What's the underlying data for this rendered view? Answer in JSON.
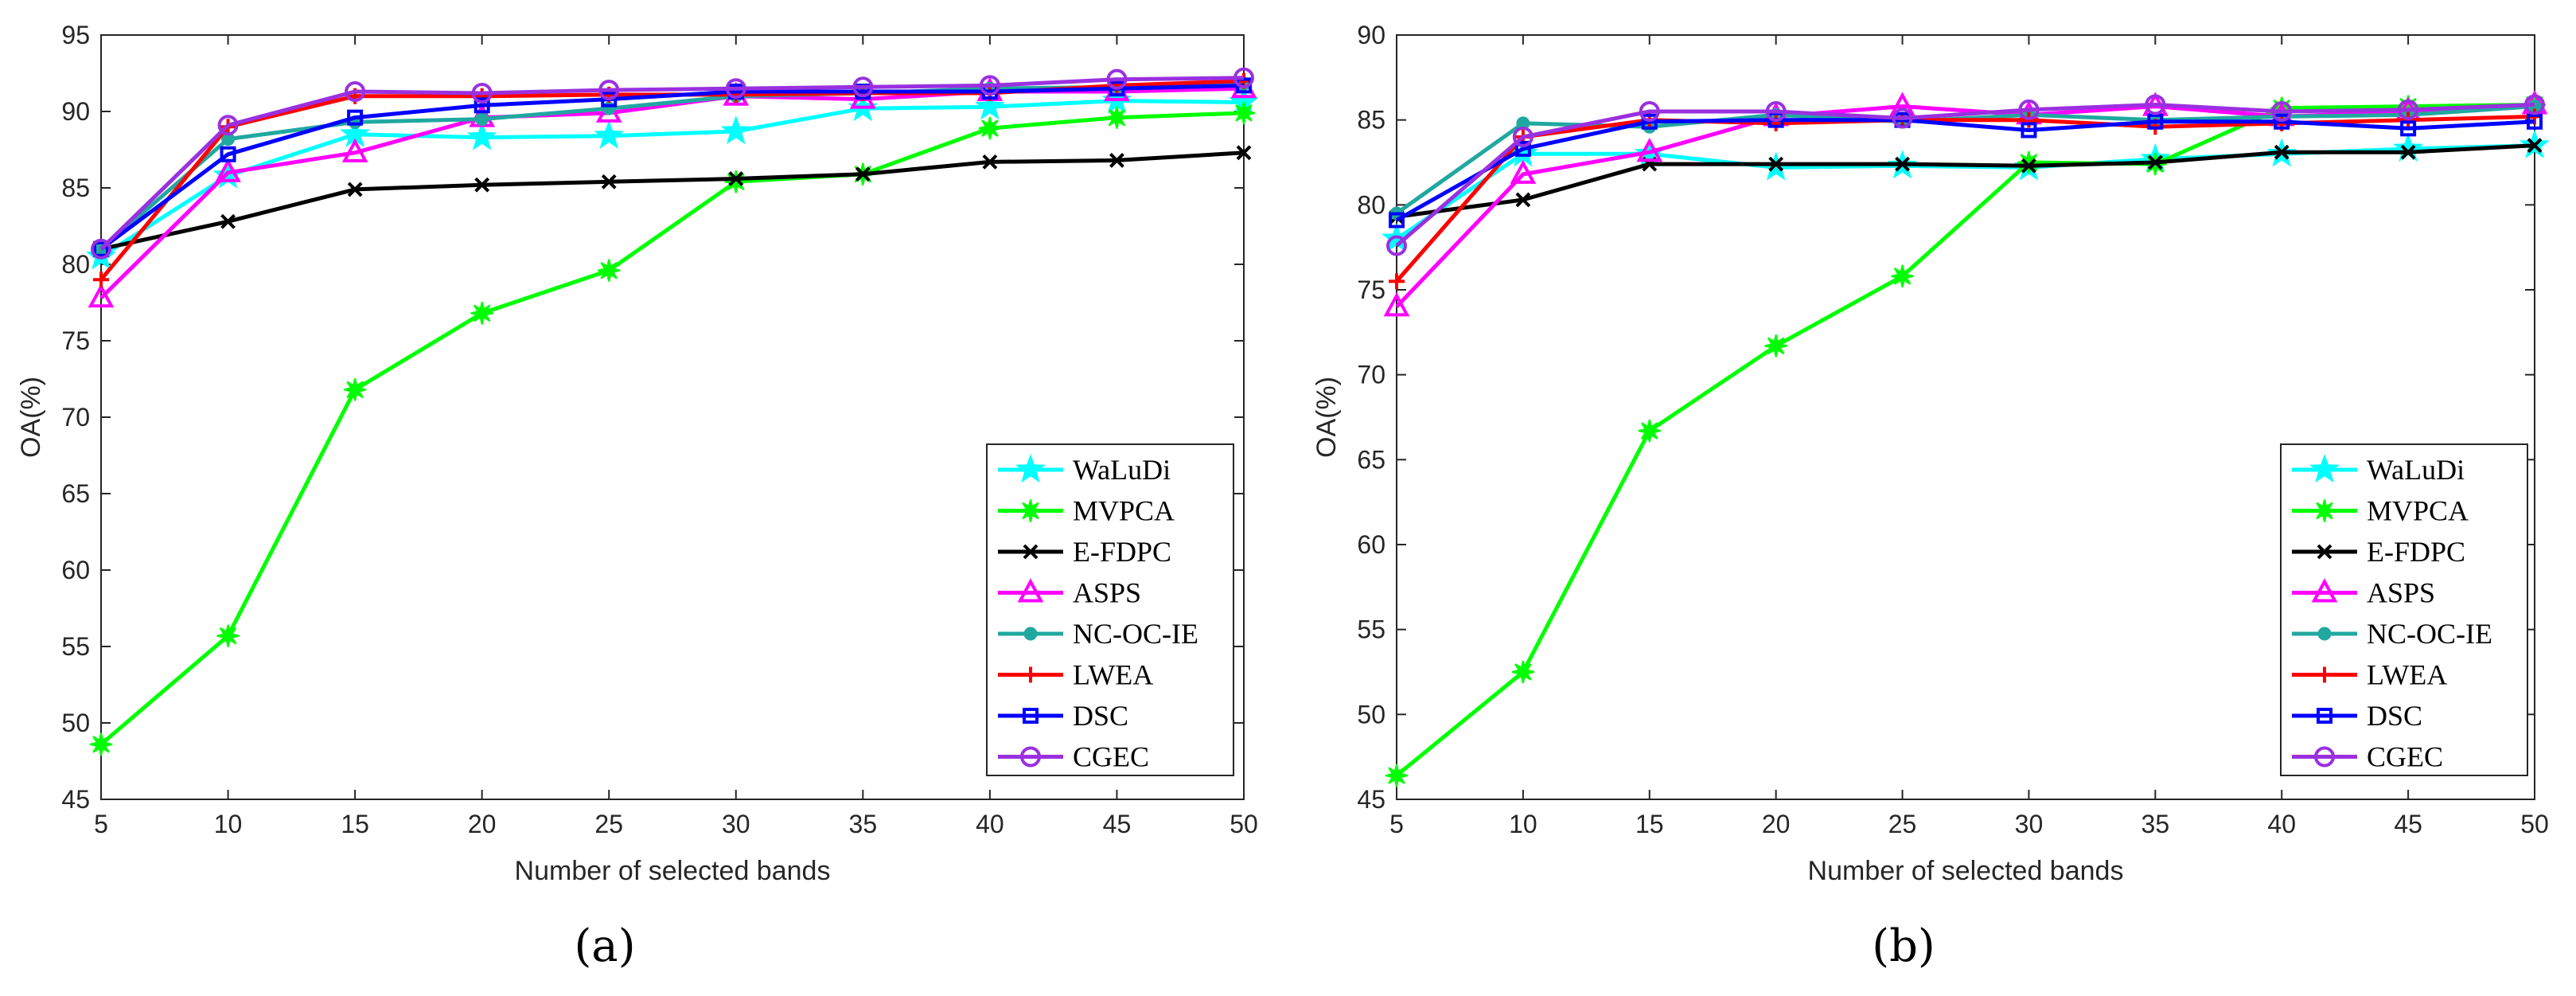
{
  "chart_data": [
    {
      "type": "line",
      "panel_label": "(a)",
      "xlabel": "Number of selected bands",
      "ylabel": "OA(%)",
      "x": [
        5,
        10,
        15,
        20,
        25,
        30,
        35,
        40,
        45,
        50
      ],
      "xlim": [
        5,
        50
      ],
      "ylim": [
        45,
        95
      ],
      "xticks": [
        5,
        10,
        15,
        20,
        25,
        30,
        35,
        40,
        45,
        50
      ],
      "yticks": [
        45,
        50,
        55,
        60,
        65,
        70,
        75,
        80,
        85,
        90,
        95
      ],
      "grid": false,
      "legend_position": "bottom-right",
      "series": [
        {
          "name": "WaLuDi",
          "color": "#00ffff",
          "marker": "star6",
          "values": [
            80.5,
            85.8,
            88.5,
            88.3,
            88.4,
            88.7,
            90.2,
            90.3,
            90.7,
            90.6
          ]
        },
        {
          "name": "MVPCA",
          "color": "#00ff00",
          "marker": "star8",
          "values": [
            48.6,
            55.7,
            71.8,
            76.8,
            79.6,
            85.4,
            85.9,
            88.9,
            89.6,
            89.9
          ]
        },
        {
          "name": "E-FDPC",
          "color": "#000000",
          "marker": "x",
          "values": [
            81.0,
            82.8,
            84.9,
            85.2,
            85.4,
            85.6,
            85.9,
            86.7,
            86.8,
            87.3
          ]
        },
        {
          "name": "ASPS",
          "color": "#ff00ff",
          "marker": "triangle",
          "values": [
            77.8,
            86.0,
            87.3,
            89.6,
            89.9,
            91.0,
            90.8,
            91.3,
            91.3,
            91.5
          ]
        },
        {
          "name": "NC-OC-IE",
          "color": "#20a8a0",
          "marker": "dot",
          "values": [
            81.0,
            88.2,
            89.3,
            89.5,
            90.2,
            91.0,
            91.2,
            91.5,
            91.6,
            91.8
          ]
        },
        {
          "name": "LWEA",
          "color": "#ff0000",
          "marker": "plus",
          "values": [
            79.0,
            89.0,
            91.0,
            91.0,
            91.1,
            91.1,
            91.2,
            91.2,
            91.7,
            92.0
          ]
        },
        {
          "name": "DSC",
          "color": "#0000ff",
          "marker": "square",
          "values": [
            81.0,
            87.2,
            89.6,
            90.4,
            90.8,
            91.3,
            91.3,
            91.3,
            91.5,
            91.7
          ]
        },
        {
          "name": "CGEC",
          "color": "#9a30e0",
          "marker": "circle",
          "values": [
            81.0,
            89.1,
            91.3,
            91.2,
            91.4,
            91.5,
            91.6,
            91.7,
            92.1,
            92.2
          ]
        }
      ]
    },
    {
      "type": "line",
      "panel_label": "(b)",
      "xlabel": "Number of selected bands",
      "ylabel": "OA(%)",
      "x": [
        5,
        10,
        15,
        20,
        25,
        30,
        35,
        40,
        45,
        50
      ],
      "xlim": [
        5,
        50
      ],
      "ylim": [
        45,
        90
      ],
      "xticks": [
        5,
        10,
        15,
        20,
        25,
        30,
        35,
        40,
        45,
        50
      ],
      "yticks": [
        45,
        50,
        55,
        60,
        65,
        70,
        75,
        80,
        85,
        90
      ],
      "grid": false,
      "legend_position": "bottom-right",
      "series": [
        {
          "name": "WaLuDi",
          "color": "#00ffff",
          "marker": "star6",
          "values": [
            78.0,
            83.0,
            83.0,
            82.2,
            82.3,
            82.2,
            82.7,
            83.0,
            83.3,
            83.5
          ]
        },
        {
          "name": "MVPCA",
          "color": "#00ff00",
          "marker": "star8",
          "values": [
            46.4,
            52.5,
            66.7,
            71.7,
            75.8,
            82.5,
            82.4,
            85.7,
            85.8,
            85.9
          ]
        },
        {
          "name": "E-FDPC",
          "color": "#000000",
          "marker": "x",
          "values": [
            79.3,
            80.3,
            82.4,
            82.4,
            82.4,
            82.3,
            82.5,
            83.1,
            83.1,
            83.5
          ]
        },
        {
          "name": "ASPS",
          "color": "#ff00ff",
          "marker": "triangle",
          "values": [
            74.0,
            81.8,
            83.1,
            85.2,
            85.8,
            85.3,
            85.8,
            85.2,
            85.5,
            85.9
          ]
        },
        {
          "name": "NC-OC-IE",
          "color": "#20a8a0",
          "marker": "dot",
          "values": [
            79.5,
            84.8,
            84.6,
            85.3,
            84.9,
            85.3,
            85.0,
            85.2,
            85.3,
            85.8
          ]
        },
        {
          "name": "LWEA",
          "color": "#ff0000",
          "marker": "plus",
          "values": [
            75.5,
            84.0,
            85.0,
            84.8,
            85.0,
            85.0,
            84.6,
            84.8,
            85.0,
            85.2
          ]
        },
        {
          "name": "DSC",
          "color": "#0000ff",
          "marker": "square",
          "values": [
            79.1,
            83.3,
            84.9,
            85.0,
            85.0,
            84.4,
            84.9,
            84.9,
            84.5,
            84.9
          ]
        },
        {
          "name": "CGEC",
          "color": "#9a30e0",
          "marker": "circle",
          "values": [
            77.6,
            84.0,
            85.5,
            85.5,
            85.1,
            85.6,
            85.9,
            85.5,
            85.6,
            85.9
          ]
        }
      ]
    }
  ]
}
